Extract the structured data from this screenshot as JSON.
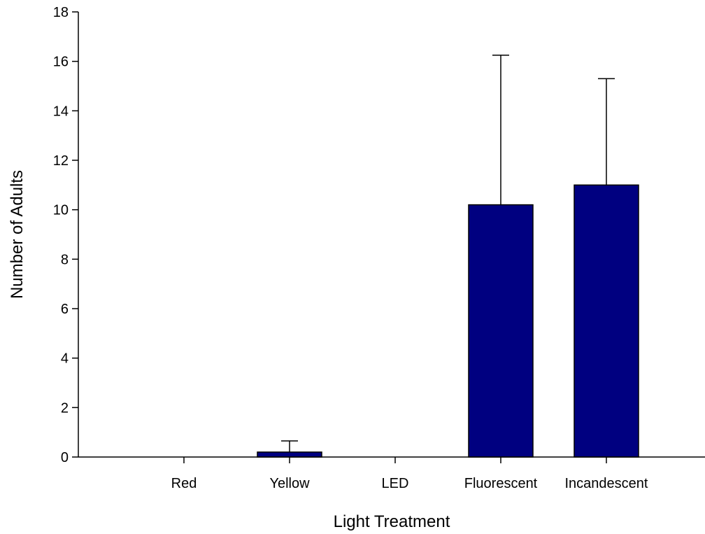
{
  "chart_data": {
    "type": "bar",
    "title": "",
    "xlabel": "Light Treatment",
    "ylabel": "Number of Adults",
    "categories": [
      "Red",
      "Yellow",
      "LED",
      "Fluorescent",
      "Incandescent"
    ],
    "values": [
      0,
      0.2,
      0,
      10.2,
      11.0
    ],
    "error_upper": [
      0,
      0.45,
      0,
      6.05,
      4.3
    ],
    "ylim": [
      0,
      18
    ],
    "yticks": [
      0,
      2,
      4,
      6,
      8,
      10,
      12,
      14,
      16,
      18
    ],
    "grid": false,
    "legend": "none",
    "bar_color": "#000080",
    "bar_edge_color": "#000000"
  }
}
